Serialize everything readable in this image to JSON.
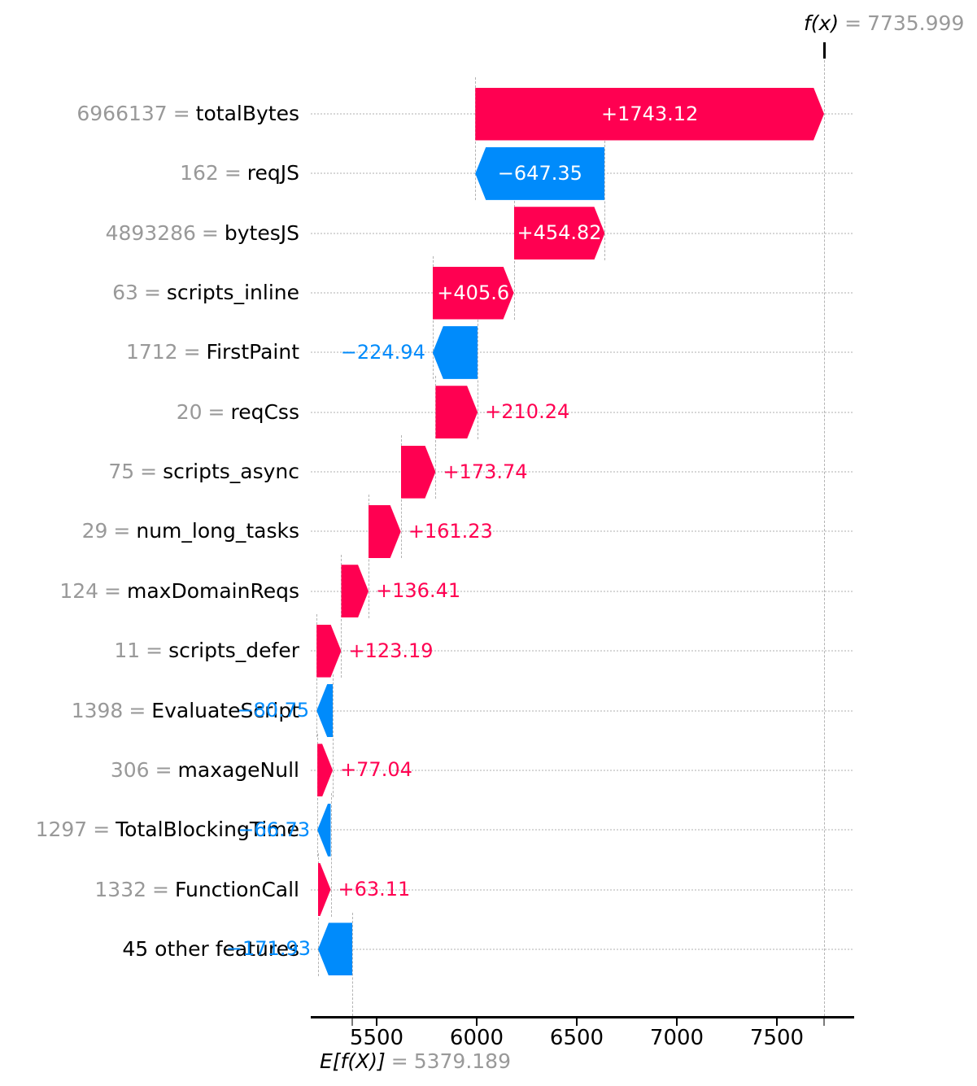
{
  "chart_data": {
    "type": "waterfall",
    "description": "SHAP waterfall plot of feature contributions",
    "fx_annotation": {
      "prefix": "f(x)",
      "equals": "=",
      "value": "7735.999"
    },
    "base_annotation": {
      "prefix": "E[f(X)]",
      "equals": "=",
      "value": "5379.189"
    },
    "base_value": 5379.189,
    "fx_value": 7735.999,
    "labels": {
      "equals": "="
    },
    "x_axis": {
      "ticks": [
        5500,
        6000,
        6500,
        7000,
        7500
      ],
      "tick_labels": [
        "5500",
        "6000",
        "6500",
        "7000",
        "7500"
      ]
    },
    "colors": {
      "positive": "#ff0051",
      "negative": "#008bfb",
      "muted_text": "#999999",
      "grid": "#d7d7d7",
      "connector": "#b3b3b3",
      "axis": "#000000",
      "inside_label": "#ffffff"
    },
    "rows": [
      {
        "feature": "totalBytes",
        "value": "6966137",
        "shap": 1743.12,
        "shap_label": "+1743.12",
        "label_placement": "inside"
      },
      {
        "feature": "reqJS",
        "value": "162",
        "shap": -647.35,
        "shap_label": "−647.35",
        "label_placement": "inside"
      },
      {
        "feature": "bytesJS",
        "value": "4893286",
        "shap": 454.82,
        "shap_label": "+454.82",
        "label_placement": "inside"
      },
      {
        "feature": "scripts_inline",
        "value": "63",
        "shap": 405.6,
        "shap_label": "+405.6",
        "label_placement": "inside"
      },
      {
        "feature": "FirstPaint",
        "value": "1712",
        "shap": -224.94,
        "shap_label": "−224.94",
        "label_placement": "outside"
      },
      {
        "feature": "reqCss",
        "value": "20",
        "shap": 210.24,
        "shap_label": "+210.24",
        "label_placement": "outside"
      },
      {
        "feature": "scripts_async",
        "value": "75",
        "shap": 173.74,
        "shap_label": "+173.74",
        "label_placement": "outside"
      },
      {
        "feature": "num_long_tasks",
        "value": "29",
        "shap": 161.23,
        "shap_label": "+161.23",
        "label_placement": "outside"
      },
      {
        "feature": "maxDomainReqs",
        "value": "124",
        "shap": 136.41,
        "shap_label": "+136.41",
        "label_placement": "outside"
      },
      {
        "feature": "scripts_defer",
        "value": "11",
        "shap": 123.19,
        "shap_label": "+123.19",
        "label_placement": "outside"
      },
      {
        "feature": "EvaluateScript",
        "value": "1398",
        "shap": -80.75,
        "shap_label": "−80.75",
        "label_placement": "outside"
      },
      {
        "feature": "maxageNull",
        "value": "306",
        "shap": 77.04,
        "shap_label": "+77.04",
        "label_placement": "outside"
      },
      {
        "feature": "TotalBlockingTime",
        "value": "1297",
        "shap": -66.73,
        "shap_label": "−66.73",
        "label_placement": "outside"
      },
      {
        "feature": "FunctionCall",
        "value": "1332",
        "shap": 63.11,
        "shap_label": "+63.11",
        "label_placement": "outside"
      },
      {
        "feature": "45 other features",
        "value": null,
        "shap": -171.93,
        "shap_label": "−171.93",
        "label_placement": "outside"
      }
    ]
  }
}
